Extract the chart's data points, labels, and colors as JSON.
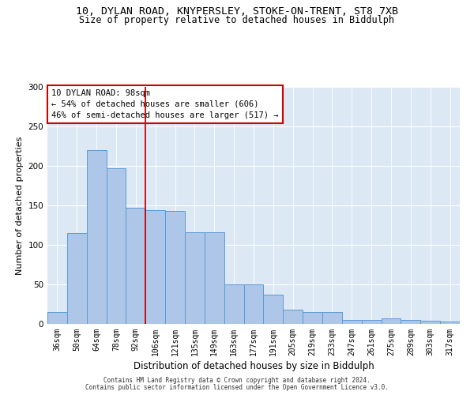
{
  "title_line1": "10, DYLAN ROAD, KNYPERSLEY, STOKE-ON-TRENT, ST8 7XB",
  "title_line2": "Size of property relative to detached houses in Biddulph",
  "xlabel": "Distribution of detached houses by size in Biddulph",
  "ylabel": "Number of detached properties",
  "categories": [
    "36sqm",
    "50sqm",
    "64sqm",
    "78sqm",
    "92sqm",
    "106sqm",
    "121sqm",
    "135sqm",
    "149sqm",
    "163sqm",
    "177sqm",
    "191sqm",
    "205sqm",
    "219sqm",
    "233sqm",
    "247sqm",
    "261sqm",
    "275sqm",
    "289sqm",
    "303sqm",
    "317sqm"
  ],
  "values": [
    15,
    115,
    220,
    197,
    147,
    144,
    143,
    116,
    116,
    50,
    50,
    37,
    18,
    15,
    15,
    5,
    5,
    7,
    5,
    4,
    3
  ],
  "bar_color": "#aec6e8",
  "bar_edge_color": "#5b9bd5",
  "vline_x": 4.5,
  "vline_color": "#cc0000",
  "annotation_text": "10 DYLAN ROAD: 98sqm\n← 54% of detached houses are smaller (606)\n46% of semi-detached houses are larger (517) →",
  "annotation_box_color": "#ffffff",
  "annotation_box_edge_color": "#cc0000",
  "ylim": [
    0,
    300
  ],
  "yticks": [
    0,
    50,
    100,
    150,
    200,
    250,
    300
  ],
  "bg_color": "#dde8f5",
  "footer_line1": "Contains HM Land Registry data © Crown copyright and database right 2024.",
  "footer_line2": "Contains public sector information licensed under the Open Government Licence v3.0.",
  "title_fontsize": 9.5,
  "subtitle_fontsize": 8.5,
  "axis_label_fontsize": 8,
  "tick_fontsize": 7,
  "annotation_fontsize": 7.5,
  "footer_fontsize": 5.5
}
